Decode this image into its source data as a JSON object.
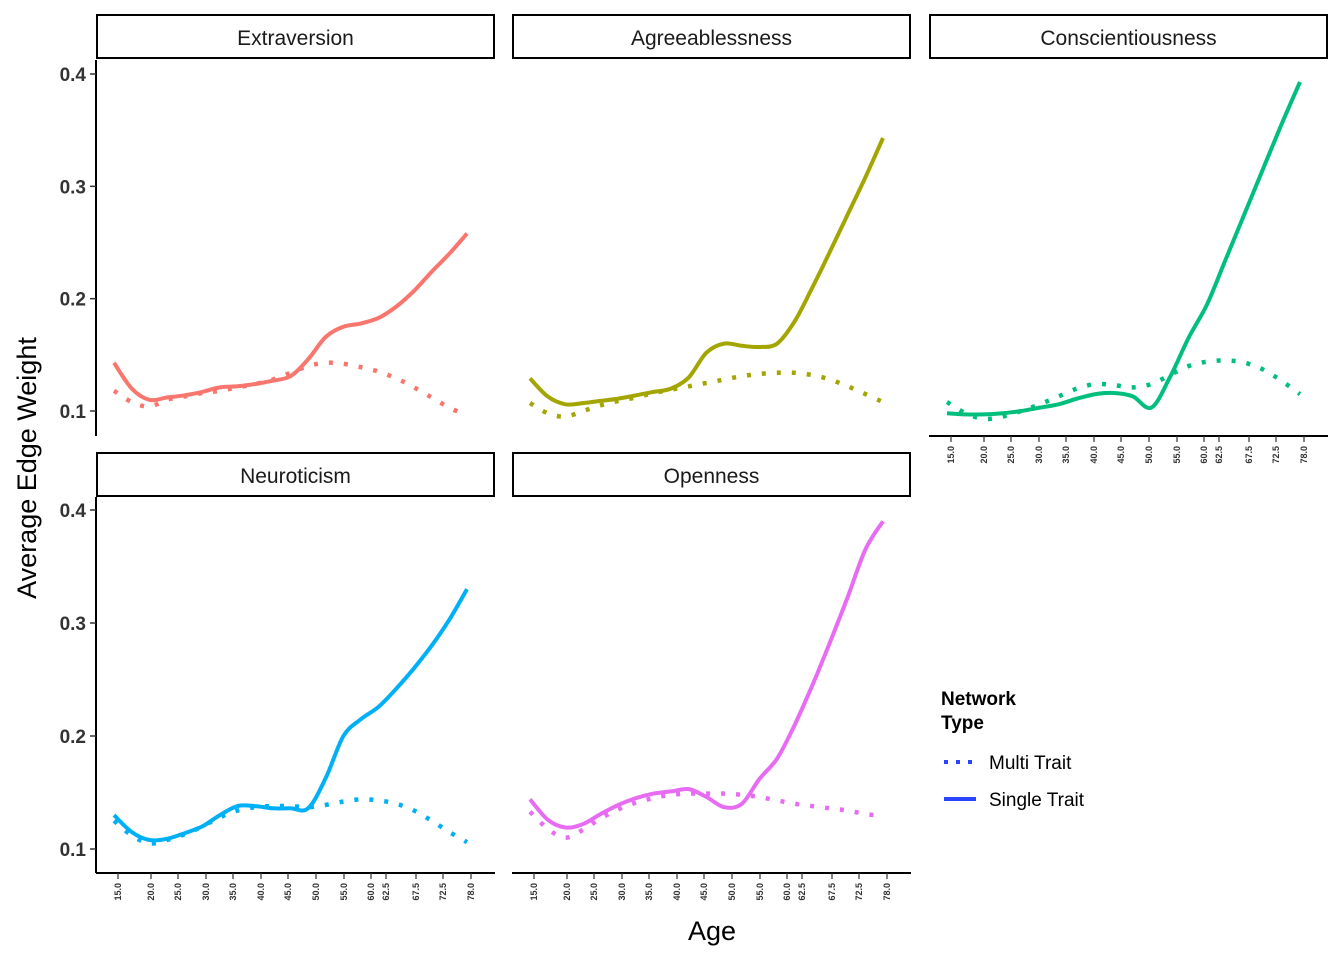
{
  "chart_data": {
    "type": "line",
    "xlabel": "Age",
    "ylabel": "Average Edge Weight",
    "x_tick_labels": [
      "15.0",
      "20.0",
      "25.0",
      "30.0",
      "35.0",
      "40.0",
      "45.0",
      "50.0",
      "55.0",
      "60.0",
      "62.5",
      "67.5",
      "72.5",
      "78.0"
    ],
    "y_ticks": [
      "0.1",
      "0.2",
      "0.3",
      "0.4"
    ],
    "ylim": [
      0.075,
      0.41
    ],
    "grid": false,
    "legend": {
      "title_lines": [
        "Network",
        "Type"
      ],
      "placement": "bottom-right",
      "entries": [
        {
          "label": "Multi Trait",
          "style": "dotted"
        },
        {
          "label": "Single Trait",
          "style": "solid"
        }
      ],
      "key_color": "#2B45FF"
    },
    "panels": [
      {
        "name": "Extraversion",
        "color": "#F8766D",
        "series": [
          {
            "type": "Single Trait",
            "values": [
              0.143,
              0.12,
              0.11,
              0.112,
              0.114,
              0.117,
              0.121,
              0.122,
              0.124,
              0.127,
              0.131,
              0.146,
              0.166,
              0.175,
              0.178,
              0.183,
              0.193,
              0.207,
              0.224,
              0.24,
              0.258
            ]
          },
          {
            "type": "Multi Trait",
            "values": [
              0.118,
              0.108,
              0.104,
              0.11,
              0.113,
              0.116,
              0.118,
              0.121,
              0.124,
              0.128,
              0.134,
              0.14,
              0.143,
              0.142,
              0.139,
              0.135,
              0.129,
              0.121,
              0.112,
              0.103,
              0.096
            ]
          }
        ]
      },
      {
        "name": "Agreeablessness",
        "color": "#A3A500",
        "series": [
          {
            "type": "Single Trait",
            "values": [
              0.129,
              0.113,
              0.106,
              0.107,
              0.109,
              0.111,
              0.114,
              0.117,
              0.12,
              0.13,
              0.152,
              0.16,
              0.158,
              0.157,
              0.16,
              0.18,
              0.21,
              0.242,
              0.275,
              0.308,
              0.343
            ]
          },
          {
            "type": "Multi Trait",
            "values": [
              0.107,
              0.098,
              0.095,
              0.1,
              0.105,
              0.109,
              0.112,
              0.116,
              0.119,
              0.122,
              0.125,
              0.128,
              0.131,
              0.133,
              0.134,
              0.134,
              0.132,
              0.128,
              0.122,
              0.115,
              0.108
            ]
          }
        ]
      },
      {
        "name": "Conscientiousness",
        "color": "#00BF7D",
        "series": [
          {
            "type": "Single Trait",
            "values": [
              0.098,
              0.097,
              0.097,
              0.098,
              0.1,
              0.103,
              0.106,
              0.111,
              0.115,
              0.116,
              0.113,
              0.103,
              0.13,
              0.165,
              0.195,
              0.235,
              0.275,
              0.315,
              0.355,
              0.393
            ]
          },
          {
            "type": "Multi Trait",
            "values": [
              0.108,
              0.098,
              0.093,
              0.095,
              0.1,
              0.106,
              0.113,
              0.12,
              0.124,
              0.123,
              0.121,
              0.124,
              0.132,
              0.14,
              0.144,
              0.145,
              0.143,
              0.137,
              0.127,
              0.115
            ]
          }
        ]
      },
      {
        "name": "Neuroticism",
        "color": "#00B0F6",
        "series": [
          {
            "type": "Single Trait",
            "values": [
              0.13,
              0.115,
              0.108,
              0.109,
              0.114,
              0.12,
              0.13,
              0.138,
              0.138,
              0.136,
              0.136,
              0.136,
              0.163,
              0.2,
              0.215,
              0.226,
              0.242,
              0.26,
              0.28,
              0.303,
              0.33
            ]
          },
          {
            "type": "Multi Trait",
            "values": [
              0.125,
              0.112,
              0.105,
              0.108,
              0.113,
              0.12,
              0.128,
              0.134,
              0.137,
              0.138,
              0.138,
              0.137,
              0.139,
              0.142,
              0.144,
              0.143,
              0.14,
              0.134,
              0.125,
              0.115,
              0.106
            ]
          }
        ]
      },
      {
        "name": "Openness",
        "color": "#E76BF3",
        "series": [
          {
            "type": "Single Trait",
            "values": [
              0.144,
              0.126,
              0.119,
              0.122,
              0.131,
              0.139,
              0.145,
              0.149,
              0.151,
              0.153,
              0.146,
              0.137,
              0.14,
              0.162,
              0.18,
              0.21,
              0.245,
              0.283,
              0.323,
              0.365,
              0.39
            ]
          },
          {
            "type": "Multi Trait",
            "values": [
              0.133,
              0.118,
              0.11,
              0.117,
              0.127,
              0.135,
              0.141,
              0.145,
              0.148,
              0.149,
              0.149,
              0.149,
              0.148,
              0.146,
              0.143,
              0.14,
              0.138,
              0.136,
              0.134,
              0.131,
              0.129
            ]
          }
        ]
      }
    ]
  }
}
